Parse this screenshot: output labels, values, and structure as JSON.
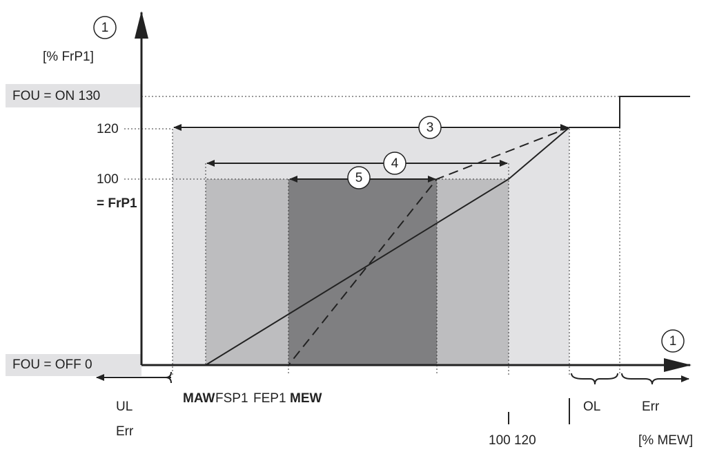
{
  "axis": {
    "y_marker": "1",
    "y_unit": "[% FrP1]",
    "x_marker": "1",
    "x_unit": "[% MEW]"
  },
  "y_labels": {
    "on": "FOU = ON 130",
    "l120": "120",
    "l100": "100",
    "frp1": "= FrP1",
    "off": "FOU = OFF 0"
  },
  "ranges": [
    {
      "marker": "3"
    },
    {
      "marker": "4"
    },
    {
      "marker": "5"
    }
  ],
  "x_labels": {
    "maw": "MAW",
    "fsp1": "FSP1",
    "fep1": "FEP1",
    "mew": "MEW",
    "pct": "100 120",
    "ol": "OL",
    "err_right": "Err",
    "ul": "UL",
    "err_left": "Err"
  }
}
